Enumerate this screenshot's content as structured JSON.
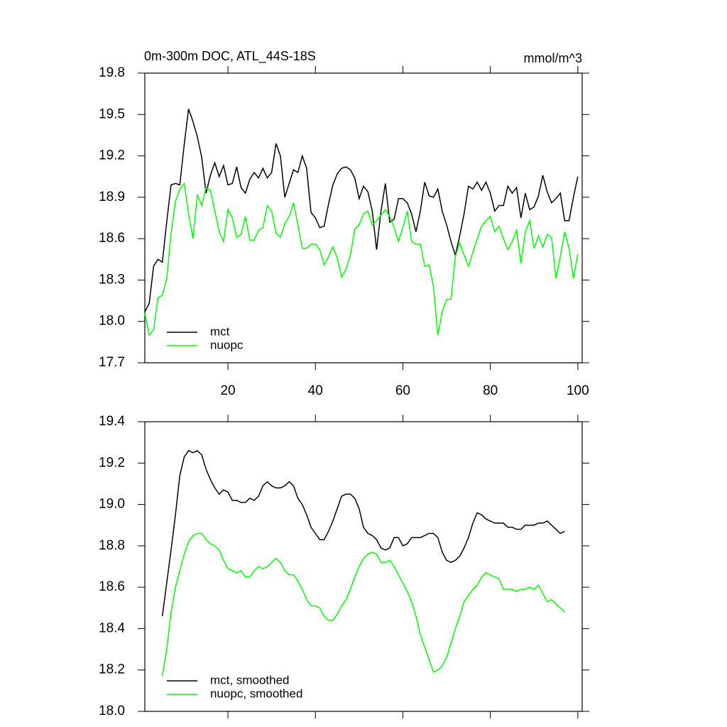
{
  "chart_data": [
    {
      "type": "line",
      "title": "0m-300m DOC, ATL_44S-18S",
      "units": "mmol/m^3",
      "x": [
        1,
        2,
        3,
        4,
        5,
        6,
        7,
        8,
        9,
        10,
        11,
        12,
        13,
        14,
        15,
        16,
        17,
        18,
        19,
        20,
        21,
        22,
        23,
        24,
        25,
        26,
        27,
        28,
        29,
        30,
        31,
        32,
        33,
        34,
        35,
        36,
        37,
        38,
        39,
        40,
        41,
        42,
        43,
        44,
        45,
        46,
        47,
        48,
        49,
        50,
        51,
        52,
        53,
        54,
        55,
        56,
        57,
        58,
        59,
        60,
        61,
        62,
        63,
        64,
        65,
        66,
        67,
        68,
        69,
        70,
        71,
        72,
        73,
        74,
        75,
        76,
        77,
        78,
        79,
        80,
        81,
        82,
        83,
        84,
        85,
        86,
        87,
        88,
        89,
        90,
        91,
        92,
        93,
        94,
        95,
        96,
        97,
        98,
        99,
        100
      ],
      "series": [
        {
          "name": "mct",
          "color": "#000000",
          "values": [
            18.07,
            18.13,
            18.4,
            18.45,
            18.43,
            18.72,
            18.99,
            19.0,
            18.99,
            19.28,
            19.54,
            19.45,
            19.34,
            19.19,
            18.93,
            19.06,
            19.15,
            19.05,
            19.13,
            18.99,
            19.0,
            19.12,
            18.97,
            18.93,
            19.03,
            19.08,
            19.04,
            19.11,
            19.04,
            19.08,
            19.29,
            19.2,
            18.9,
            19.0,
            19.1,
            19.08,
            19.2,
            19.11,
            18.79,
            18.75,
            18.68,
            18.69,
            18.85,
            18.99,
            19.07,
            19.11,
            19.12,
            19.1,
            19.04,
            18.89,
            18.98,
            18.94,
            18.8,
            18.52,
            18.8,
            19.0,
            18.72,
            18.74,
            18.89,
            18.89,
            18.86,
            18.78,
            18.65,
            18.8,
            19.01,
            18.91,
            18.9,
            18.96,
            18.8,
            18.7,
            18.58,
            18.48,
            18.62,
            18.78,
            18.98,
            18.96,
            19.01,
            18.95,
            19.01,
            18.93,
            18.8,
            18.84,
            18.84,
            18.98,
            18.93,
            18.97,
            18.75,
            18.93,
            18.81,
            18.83,
            18.91,
            19.06,
            18.94,
            18.86,
            18.89,
            18.93,
            18.73,
            18.73,
            18.9,
            19.05
          ]
        },
        {
          "name": "nuopc",
          "color": "#00ff00",
          "values": [
            18.06,
            17.9,
            17.94,
            18.17,
            18.19,
            18.31,
            18.64,
            18.87,
            18.96,
            19.0,
            18.78,
            18.6,
            18.92,
            18.84,
            18.97,
            18.95,
            18.8,
            18.65,
            18.58,
            18.81,
            18.75,
            18.61,
            18.63,
            18.76,
            18.59,
            18.59,
            18.66,
            18.68,
            18.84,
            18.8,
            18.64,
            18.61,
            18.71,
            18.76,
            18.86,
            18.7,
            18.53,
            18.53,
            18.56,
            18.56,
            18.52,
            18.41,
            18.47,
            18.54,
            18.46,
            18.32,
            18.38,
            18.48,
            18.67,
            18.7,
            18.78,
            18.8,
            18.7,
            18.73,
            18.77,
            18.81,
            18.76,
            18.68,
            18.58,
            18.68,
            18.8,
            18.58,
            18.56,
            18.56,
            18.4,
            18.41,
            18.25,
            17.9,
            18.07,
            18.16,
            18.16,
            18.47,
            18.57,
            18.48,
            18.4,
            18.5,
            18.6,
            18.69,
            18.73,
            18.76,
            18.65,
            18.69,
            18.6,
            18.52,
            18.58,
            18.66,
            18.42,
            18.65,
            18.73,
            18.53,
            18.62,
            18.54,
            18.63,
            18.61,
            18.31,
            18.47,
            18.65,
            18.53,
            18.31,
            18.49
          ]
        }
      ],
      "xlim": [
        1,
        101
      ],
      "ylim": [
        17.7,
        19.8
      ],
      "xticks": [
        20,
        40,
        60,
        80,
        100
      ],
      "yticks": [
        {
          "value": 17.7,
          "label": "17.7"
        },
        {
          "value": 18.0,
          "label": "18.0"
        },
        {
          "value": 18.3,
          "label": "18.3"
        },
        {
          "value": 18.6,
          "label": "18.6"
        },
        {
          "value": 18.9,
          "label": "18.9"
        },
        {
          "value": 19.2,
          "label": "19.2"
        },
        {
          "value": 19.5,
          "label": "19.5"
        },
        {
          "value": 19.8,
          "label": "19.8"
        }
      ],
      "show_xtick_labels": true,
      "legend": "lower left"
    },
    {
      "type": "line",
      "x": [
        1,
        2,
        3,
        4,
        5,
        6,
        7,
        8,
        9,
        10,
        11,
        12,
        13,
        14,
        15,
        16,
        17,
        18,
        19,
        20,
        21,
        22,
        23,
        24,
        25,
        26,
        27,
        28,
        29,
        30,
        31,
        32,
        33,
        34,
        35,
        36,
        37,
        38,
        39,
        40,
        41,
        42,
        43,
        44,
        45,
        46,
        47,
        48,
        49,
        50,
        51,
        52,
        53,
        54,
        55,
        56,
        57,
        58,
        59,
        60,
        61,
        62,
        63,
        64,
        65,
        66,
        67,
        68,
        69,
        70,
        71,
        72,
        73,
        74,
        75,
        76,
        77,
        78,
        79,
        80,
        81,
        82,
        83,
        84,
        85,
        86,
        87,
        88,
        89,
        90,
        91,
        92,
        93,
        94,
        95,
        96,
        97,
        98,
        99,
        100
      ],
      "series": [
        {
          "name": "mct, smoothed",
          "color": "#000000",
          "values": [
            null,
            null,
            null,
            null,
            18.46,
            18.62,
            18.78,
            18.95,
            19.14,
            19.23,
            19.26,
            19.25,
            19.26,
            19.24,
            19.17,
            19.12,
            19.08,
            19.05,
            19.07,
            19.06,
            19.02,
            19.02,
            19.01,
            19.01,
            19.03,
            19.02,
            19.04,
            19.09,
            19.11,
            19.09,
            19.08,
            19.08,
            19.09,
            19.11,
            19.09,
            19.03,
            19.0,
            18.95,
            18.89,
            18.86,
            18.83,
            18.83,
            18.87,
            18.92,
            18.98,
            19.04,
            19.05,
            19.05,
            19.03,
            18.98,
            18.89,
            18.86,
            18.85,
            18.83,
            18.79,
            18.78,
            18.79,
            18.84,
            18.84,
            18.8,
            18.81,
            18.84,
            18.84,
            18.84,
            18.85,
            18.86,
            18.86,
            18.84,
            18.77,
            18.73,
            18.72,
            18.73,
            18.75,
            18.79,
            18.84,
            18.91,
            18.96,
            18.95,
            18.93,
            18.92,
            18.91,
            18.91,
            18.91,
            18.89,
            18.89,
            18.88,
            18.88,
            18.9,
            18.9,
            18.9,
            18.91,
            18.91,
            18.92,
            18.9,
            18.88,
            18.86,
            18.87,
            null,
            null,
            null
          ]
        },
        {
          "name": "nuopc, smoothed",
          "color": "#00ff00",
          "values": [
            null,
            null,
            null,
            null,
            18.17,
            18.3,
            18.48,
            18.6,
            18.68,
            18.76,
            18.82,
            18.85,
            18.86,
            18.86,
            18.83,
            18.81,
            18.8,
            18.78,
            18.73,
            18.69,
            18.68,
            18.67,
            18.68,
            18.65,
            18.65,
            18.68,
            18.7,
            18.69,
            18.7,
            18.72,
            18.74,
            18.72,
            18.68,
            18.66,
            18.66,
            18.63,
            18.59,
            18.54,
            18.51,
            18.51,
            18.5,
            18.46,
            18.44,
            18.44,
            18.47,
            18.51,
            18.54,
            18.59,
            18.65,
            18.7,
            18.74,
            18.76,
            18.77,
            18.76,
            18.72,
            18.72,
            18.73,
            18.7,
            18.66,
            18.62,
            18.58,
            18.53,
            18.46,
            18.37,
            18.31,
            18.25,
            18.19,
            18.2,
            18.22,
            18.26,
            18.33,
            18.4,
            18.46,
            18.53,
            18.56,
            18.59,
            18.61,
            18.65,
            18.67,
            18.66,
            18.65,
            18.64,
            18.59,
            18.59,
            18.59,
            18.58,
            18.59,
            18.59,
            18.6,
            18.59,
            18.61,
            18.57,
            18.53,
            18.54,
            18.52,
            18.5,
            18.48,
            null,
            null,
            null
          ]
        }
      ],
      "xlim": [
        1,
        101
      ],
      "ylim": [
        18.0,
        19.4
      ],
      "xticks": [
        20,
        40,
        60,
        80,
        100
      ],
      "yticks": [
        {
          "value": 18.0,
          "label": "18.0"
        },
        {
          "value": 18.2,
          "label": "18.2"
        },
        {
          "value": 18.4,
          "label": "18.4"
        },
        {
          "value": 18.6,
          "label": "18.6"
        },
        {
          "value": 18.8,
          "label": "18.8"
        },
        {
          "value": 19.0,
          "label": "19.0"
        },
        {
          "value": 19.2,
          "label": "19.2"
        },
        {
          "value": 19.4,
          "label": "19.4"
        }
      ],
      "show_xtick_labels": false,
      "legend": "lower left"
    }
  ]
}
